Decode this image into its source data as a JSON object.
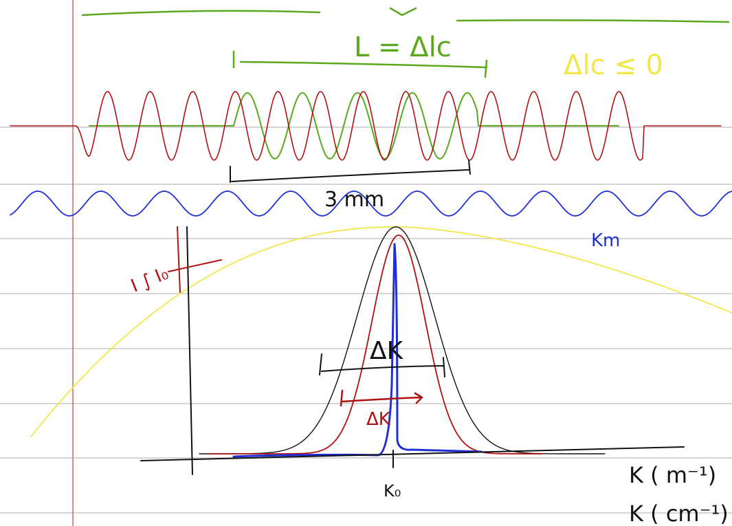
{
  "notes": {
    "coherence_length": "L = Δlc",
    "coherence_zero": "Δlc ≤ 0",
    "packet_length": "3 mm",
    "wavenumber_label": "Km",
    "intensity_label": "I ∫ I₀",
    "spectral_width_black": "ΔK",
    "spectral_width_red": "ΔK",
    "center_wavenumber": "K₀",
    "axis_label_m": "K ( m⁻¹)",
    "axis_label_cm": "K ( cm⁻¹)"
  }
}
